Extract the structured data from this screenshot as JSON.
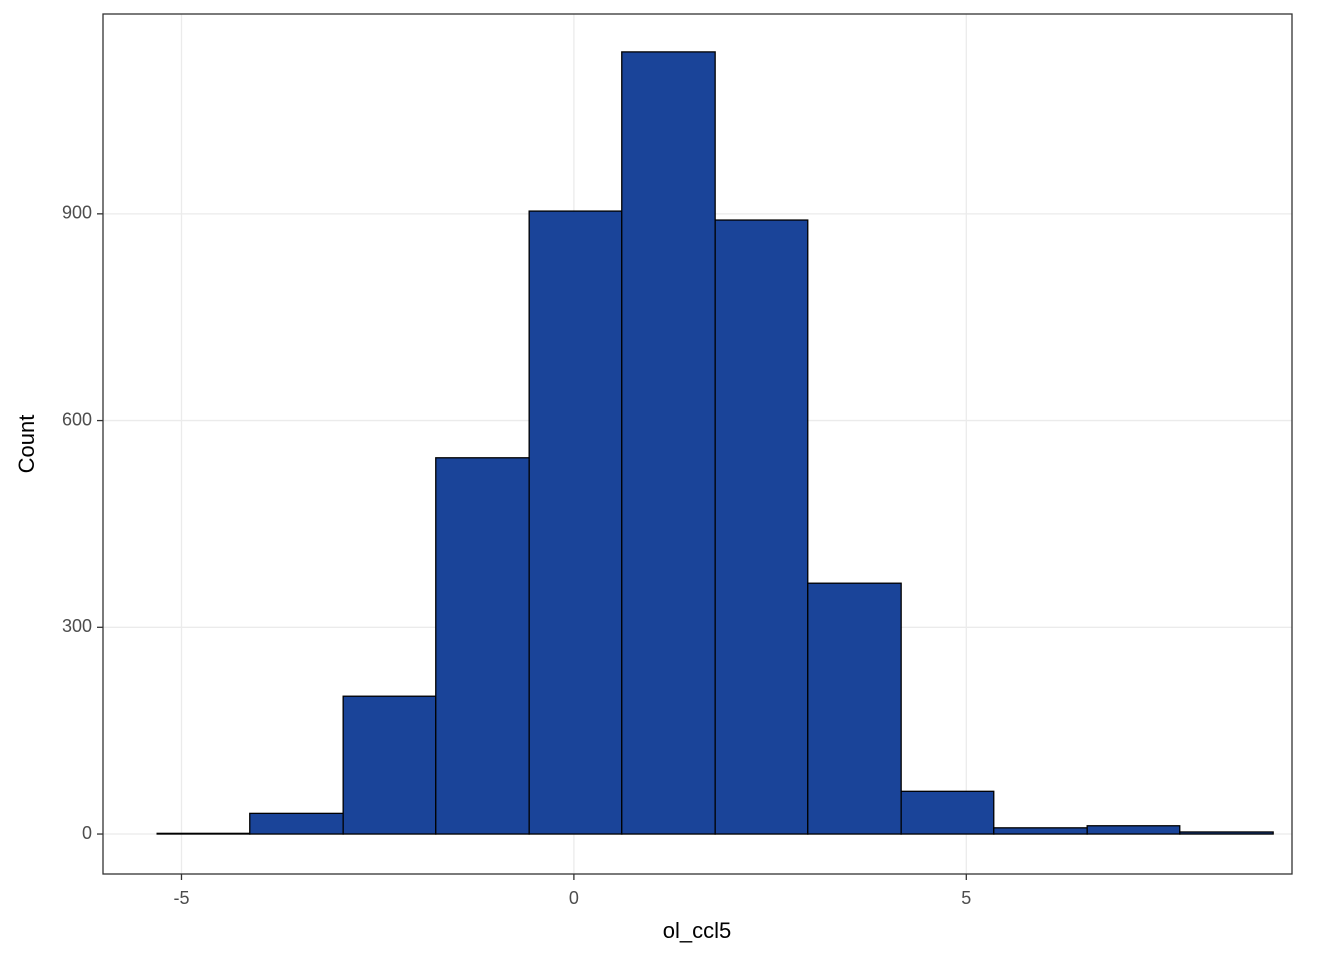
{
  "chart_data": {
    "type": "histogram",
    "x_label": "ol_ccl5",
    "y_label": "Count",
    "bins": [
      -5.31,
      -4.13,
      -2.94,
      -1.76,
      -0.57,
      0.61,
      1.8,
      2.98,
      4.17,
      5.35,
      6.54,
      7.72,
      8.91
    ],
    "values": [
      1,
      30,
      200,
      546,
      904,
      1135,
      891,
      364,
      62,
      9,
      12,
      3
    ],
    "color": "#1a4499",
    "edge_color": "#000000",
    "xlim": [
      -6.0,
      9.15
    ],
    "ylim": [
      -58,
      1190
    ],
    "xticks": [
      -5,
      0,
      5
    ],
    "yticks": [
      0,
      300,
      600,
      900
    ],
    "grid": true
  }
}
